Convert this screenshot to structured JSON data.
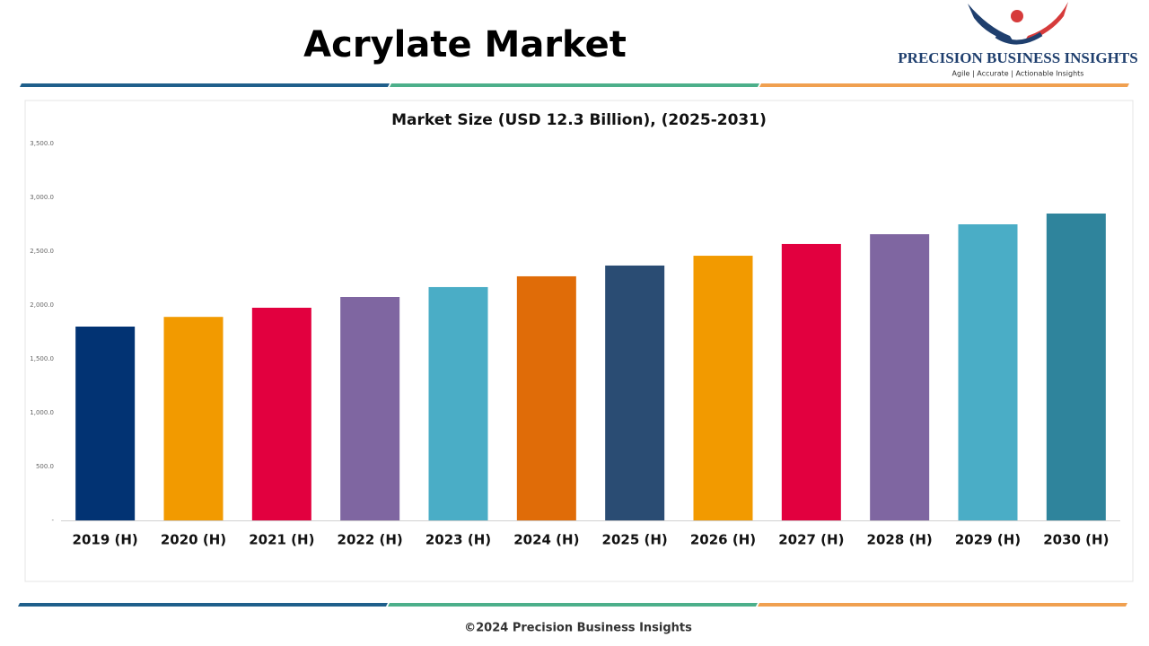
{
  "header": {
    "title": "Acrylate Market",
    "brand": "PRECISION BUSINESS INSIGHTS",
    "tagline": "Agile | Accurate | Actionable Insights"
  },
  "chart_data": {
    "type": "bar",
    "title": "Market Size (USD 12.3 Billion), (2025-2031)",
    "categories": [
      "2019 (H)",
      "2020 (H)",
      "2021 (H)",
      "2022 (H)",
      "2023 (H)",
      "2024 (H)",
      "2025 (H)",
      "2026 (H)",
      "2027 (H)",
      "2028 (H)",
      "2029 (H)",
      "2030 (H)"
    ],
    "values": [
      1800,
      1890,
      1975,
      2075,
      2167,
      2267,
      2367,
      2458,
      2567,
      2658,
      2750,
      2850
    ],
    "colors": [
      "#023373",
      "#f29a00",
      "#e2003f",
      "#7f66a1",
      "#4aadc6",
      "#e06c08",
      "#2a4c73",
      "#f29a00",
      "#e2003f",
      "#7f66a1",
      "#4aadc6",
      "#2f849c"
    ],
    "ylim": [
      0,
      3500
    ],
    "yticks": [
      {
        "value": 0,
        "label": "-"
      },
      {
        "value": 500,
        "label": "500.0"
      },
      {
        "value": 1000,
        "label": "1,000.0"
      },
      {
        "value": 1500,
        "label": "1,500.0"
      },
      {
        "value": 2000,
        "label": "2,000.0"
      },
      {
        "value": 2500,
        "label": "2,500.0"
      },
      {
        "value": 3000,
        "label": "3,000.0"
      },
      {
        "value": 3500,
        "label": "3,500.0"
      }
    ],
    "grid": false
  },
  "footer": "©2024 Precision Business Insights"
}
